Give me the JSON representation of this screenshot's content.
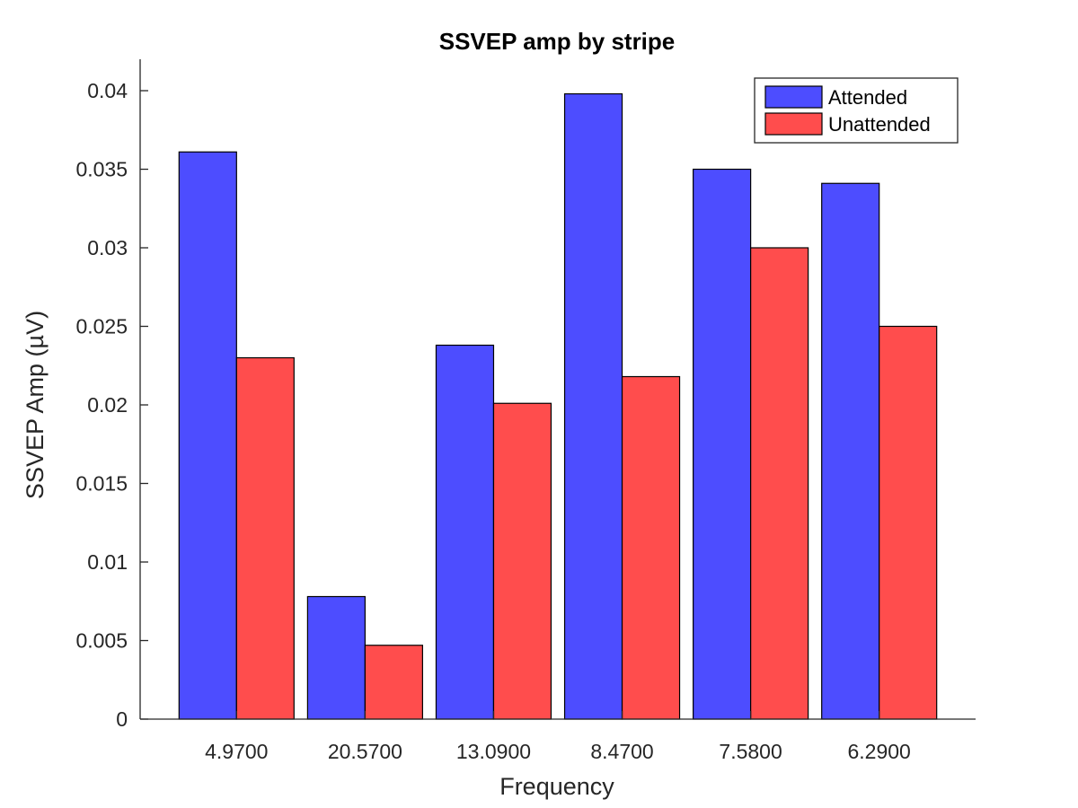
{
  "chart_data": {
    "type": "bar",
    "title": "SSVEP amp by stripe",
    "xlabel": "Frequency",
    "ylabel": "SSVEP Amp (µV)",
    "categories": [
      "4.9700",
      "20.5700",
      "13.0900",
      "8.4700",
      "7.5800",
      "6.2900"
    ],
    "series": [
      {
        "name": "Attended",
        "color": "#4d4dff",
        "values": [
          0.0361,
          0.0078,
          0.0238,
          0.0398,
          0.035,
          0.0341
        ]
      },
      {
        "name": "Unattended",
        "color": "#ff4d4d",
        "values": [
          0.023,
          0.0047,
          0.0201,
          0.0218,
          0.03,
          0.025
        ]
      }
    ],
    "ylim": [
      0,
      0.042
    ],
    "yticks": [
      0,
      0.005,
      0.01,
      0.015,
      0.02,
      0.025,
      0.03,
      0.035,
      0.04
    ],
    "ytick_labels": [
      "0",
      "0.005",
      "0.01",
      "0.015",
      "0.02",
      "0.025",
      "0.03",
      "0.035",
      "0.04"
    ],
    "grid": false,
    "legend_position": "top-right",
    "box": "off"
  }
}
